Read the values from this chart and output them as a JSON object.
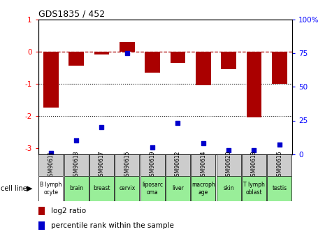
{
  "title": "GDS1835 / 452",
  "categories": [
    "GSM90611",
    "GSM90618",
    "GSM90617",
    "GSM90615",
    "GSM90619",
    "GSM90612",
    "GSM90614",
    "GSM90620",
    "GSM90613",
    "GSM90616"
  ],
  "cell_lines": [
    "B lymph\nocyte",
    "brain",
    "breast",
    "cervix",
    "liposarc\noma",
    "liver",
    "macroph\nage",
    "skin",
    "T lymph\noblast",
    "testis"
  ],
  "cell_line_colors": [
    "#ffffff",
    "#99ee99",
    "#99ee99",
    "#99ee99",
    "#99ee99",
    "#99ee99",
    "#99ee99",
    "#99ee99",
    "#99ee99",
    "#99ee99"
  ],
  "log2_ratio": [
    -1.75,
    -0.45,
    -0.1,
    0.3,
    -0.65,
    -0.35,
    -1.05,
    -0.55,
    -2.05,
    -1.0
  ],
  "percentile_rank": [
    1,
    10,
    20,
    75,
    5,
    23,
    8,
    3,
    3,
    7
  ],
  "ylim_left": [
    -3.2,
    1.0
  ],
  "ylim_right": [
    0,
    100
  ],
  "yticks_left": [
    -3,
    -2,
    -1,
    0,
    1
  ],
  "yticks_right": [
    0,
    25,
    50,
    75,
    100
  ],
  "bar_color": "#aa0000",
  "dot_color": "#0000cc",
  "legend_items": [
    {
      "label": "log2 ratio",
      "color": "#aa0000"
    },
    {
      "label": "percentile rank within the sample",
      "color": "#0000cc"
    }
  ]
}
